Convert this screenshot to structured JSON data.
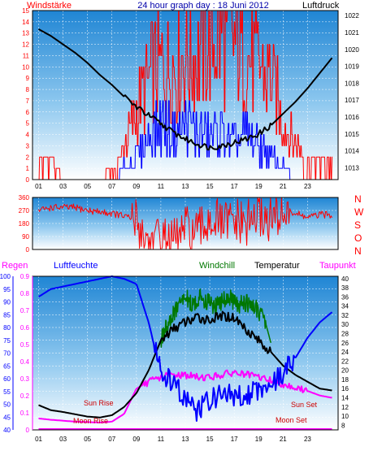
{
  "chart_data": [
    {
      "type": "line",
      "panel": "wind_pressure",
      "title": "24 hour graph day : 18 Juni 2012",
      "left_label": "Windstärke",
      "right_label": "Luftdruck",
      "x_ticks": [
        "01",
        "03",
        "05",
        "07",
        "09",
        "11",
        "13",
        "15",
        "17",
        "19",
        "21",
        "23"
      ],
      "y_left_ticks": [
        0,
        1,
        2,
        3,
        4,
        5,
        6,
        7,
        8,
        9,
        10,
        11,
        12,
        13,
        14,
        15
      ],
      "y_left_range": [
        0,
        15
      ],
      "y_right_ticks": [
        1013,
        1014,
        1015,
        1016,
        1017,
        1018,
        1019,
        1020,
        1021,
        1022
      ],
      "y_right_range": [
        1012.3,
        1022.3
      ],
      "grid": true,
      "series": [
        {
          "key": "pressure",
          "color": "#000000",
          "axis": "right",
          "x": [
            0,
            1,
            2,
            3,
            4,
            5,
            6,
            7,
            8,
            9,
            10,
            11,
            12,
            13,
            14,
            15,
            16,
            17,
            18,
            19,
            20,
            21,
            22,
            23,
            24
          ],
          "values": [
            1021.2,
            1020.8,
            1020.3,
            1019.8,
            1019.2,
            1018.5,
            1017.9,
            1017.2,
            1016.6,
            1016.1,
            1015.6,
            1015.1,
            1014.7,
            1014.4,
            1014.2,
            1014.3,
            1014.5,
            1014.7,
            1015.0,
            1015.5,
            1016.2,
            1016.9,
            1017.7,
            1018.6,
            1019.5
          ]
        },
        {
          "key": "wind_gust",
          "color": "#ff0000",
          "axis": "left",
          "x": [
            0,
            1,
            2,
            3,
            4,
            5,
            6,
            7,
            8,
            9,
            10,
            11,
            12,
            13,
            14,
            15,
            16,
            17,
            18,
            19,
            20,
            21,
            22,
            23,
            24
          ],
          "values": [
            2,
            2,
            0,
            0,
            0,
            0,
            1,
            3,
            6,
            9,
            10,
            10,
            11,
            11,
            12,
            13,
            12,
            11,
            10,
            9,
            5,
            3,
            2,
            2,
            2
          ]
        },
        {
          "key": "wind_speed",
          "color": "#0000ff",
          "axis": "left",
          "x": [
            0,
            1,
            2,
            3,
            4,
            5,
            6,
            7,
            8,
            9,
            10,
            11,
            12,
            13,
            14,
            15,
            16,
            17,
            18,
            19,
            20,
            21,
            22,
            23,
            24
          ],
          "values": [
            0,
            0,
            0,
            0,
            0,
            0,
            0,
            1,
            2,
            4,
            5,
            4,
            5,
            4,
            4,
            4,
            3,
            4,
            3,
            2,
            1,
            0,
            0,
            0,
            0
          ]
        }
      ]
    },
    {
      "type": "line",
      "panel": "wind_direction",
      "right_labels": [
        "N",
        "W",
        "S",
        "O",
        "N"
      ],
      "y_ticks": [
        0,
        90,
        180,
        270,
        360
      ],
      "y_range": [
        0,
        360
      ],
      "series": [
        {
          "key": "direction",
          "color": "#ff0000",
          "x": [
            0,
            1,
            2,
            3,
            4,
            5,
            6,
            7,
            8,
            9,
            10,
            11,
            12,
            13,
            14,
            15,
            16,
            17,
            18,
            19,
            20,
            21,
            22,
            23,
            24
          ],
          "values": [
            270,
            290,
            290,
            290,
            270,
            260,
            250,
            230,
            200,
            40,
            70,
            40,
            140,
            100,
            220,
            170,
            190,
            170,
            240,
            200,
            270,
            250,
            220,
            240,
            240
          ]
        }
      ]
    },
    {
      "type": "line",
      "panel": "humidity_temperature",
      "labels": {
        "regen": "Regen",
        "luftfeuchte": "Luftfeuchte",
        "windchill": "Windchill",
        "temperatur": "Temperatur",
        "taupunkt": "Taupunkt"
      },
      "annotations": {
        "sun_rise": "Sun Rise",
        "sun_set": "Sun Set",
        "moon_rise": "Moon Rise",
        "moon_set": "Moon Set"
      },
      "y_humidity_ticks": [
        40,
        45,
        50,
        55,
        60,
        65,
        70,
        75,
        80,
        85,
        90,
        95,
        100
      ],
      "y_humidity_range": [
        40,
        100
      ],
      "y_rain_ticks": [
        0,
        0.1,
        0.2,
        0.3,
        0.4,
        0.5,
        0.6,
        0.7,
        0.8,
        0.9
      ],
      "y_rain_range": [
        0,
        0.9
      ],
      "y_temp_ticks": [
        8,
        10,
        12,
        14,
        16,
        18,
        20,
        22,
        24,
        26,
        28,
        30,
        32,
        34,
        36,
        38,
        40
      ],
      "y_temp_range": [
        7,
        40.5
      ],
      "x_ticks": [
        "01",
        "03",
        "05",
        "07",
        "09",
        "11",
        "13",
        "15",
        "17",
        "19",
        "21",
        "23"
      ],
      "series": [
        {
          "key": "humidity",
          "color": "#0000ff",
          "axis": "humidity",
          "x": [
            0,
            1,
            2,
            3,
            4,
            5,
            6,
            7,
            8,
            9,
            10,
            11,
            12,
            13,
            14,
            15,
            16,
            17,
            18,
            19,
            20,
            21,
            22,
            23,
            24
          ],
          "values": [
            92,
            95,
            96,
            97,
            98,
            99,
            100,
            99,
            97,
            82,
            62,
            58,
            52,
            47,
            52,
            54,
            53,
            54,
            56,
            58,
            62,
            68,
            76,
            82,
            86
          ]
        },
        {
          "key": "temperature",
          "color": "#000000",
          "axis": "temp",
          "x": [
            0,
            1,
            2,
            3,
            4,
            5,
            6,
            7,
            8,
            9,
            10,
            11,
            12,
            13,
            14,
            15,
            16,
            17,
            18,
            19,
            20,
            21,
            22,
            23,
            24
          ],
          "values": [
            12.4,
            11.3,
            10.9,
            10.4,
            9.9,
            9.7,
            10.2,
            12.0,
            15.0,
            20.0,
            26.5,
            29.0,
            30.5,
            31.5,
            31.0,
            31.8,
            31.5,
            29.0,
            26.5,
            24.0,
            21.0,
            19.0,
            17.5,
            16.0,
            15.6
          ]
        },
        {
          "key": "windchill",
          "color": "#007700",
          "axis": "temp",
          "x": [
            9.6,
            10.2,
            10.8,
            11.4,
            12.0,
            12.6,
            13.2,
            13.8,
            14.4,
            15.0,
            15.6,
            16.2,
            16.8,
            17.4,
            18.0,
            18.6,
            19.0
          ],
          "values": [
            24,
            28,
            31,
            34,
            36,
            34,
            36,
            35,
            34,
            35,
            36,
            34,
            35,
            34,
            33,
            30,
            26
          ]
        },
        {
          "key": "dewpoint",
          "color": "#ff00ff",
          "axis": "temp",
          "x": [
            0,
            1,
            2,
            3,
            4,
            5,
            6,
            7,
            8,
            9,
            10,
            11,
            12,
            13,
            14,
            15,
            16,
            17,
            18,
            19,
            20,
            21,
            22,
            23,
            24
          ],
          "values": [
            9.5,
            9.2,
            9.0,
            8.8,
            8.7,
            8.6,
            8.8,
            10.5,
            16.0,
            17.5,
            18.5,
            19.0,
            19.0,
            18.5,
            18.5,
            19.0,
            19.5,
            19.0,
            18.5,
            17.8,
            17.0,
            16.2,
            15.5,
            14.5,
            14.0
          ]
        },
        {
          "key": "rain",
          "color": "#ff00ff",
          "axis": "rain",
          "x": [
            0,
            24
          ],
          "values": [
            0,
            0
          ]
        }
      ]
    }
  ]
}
